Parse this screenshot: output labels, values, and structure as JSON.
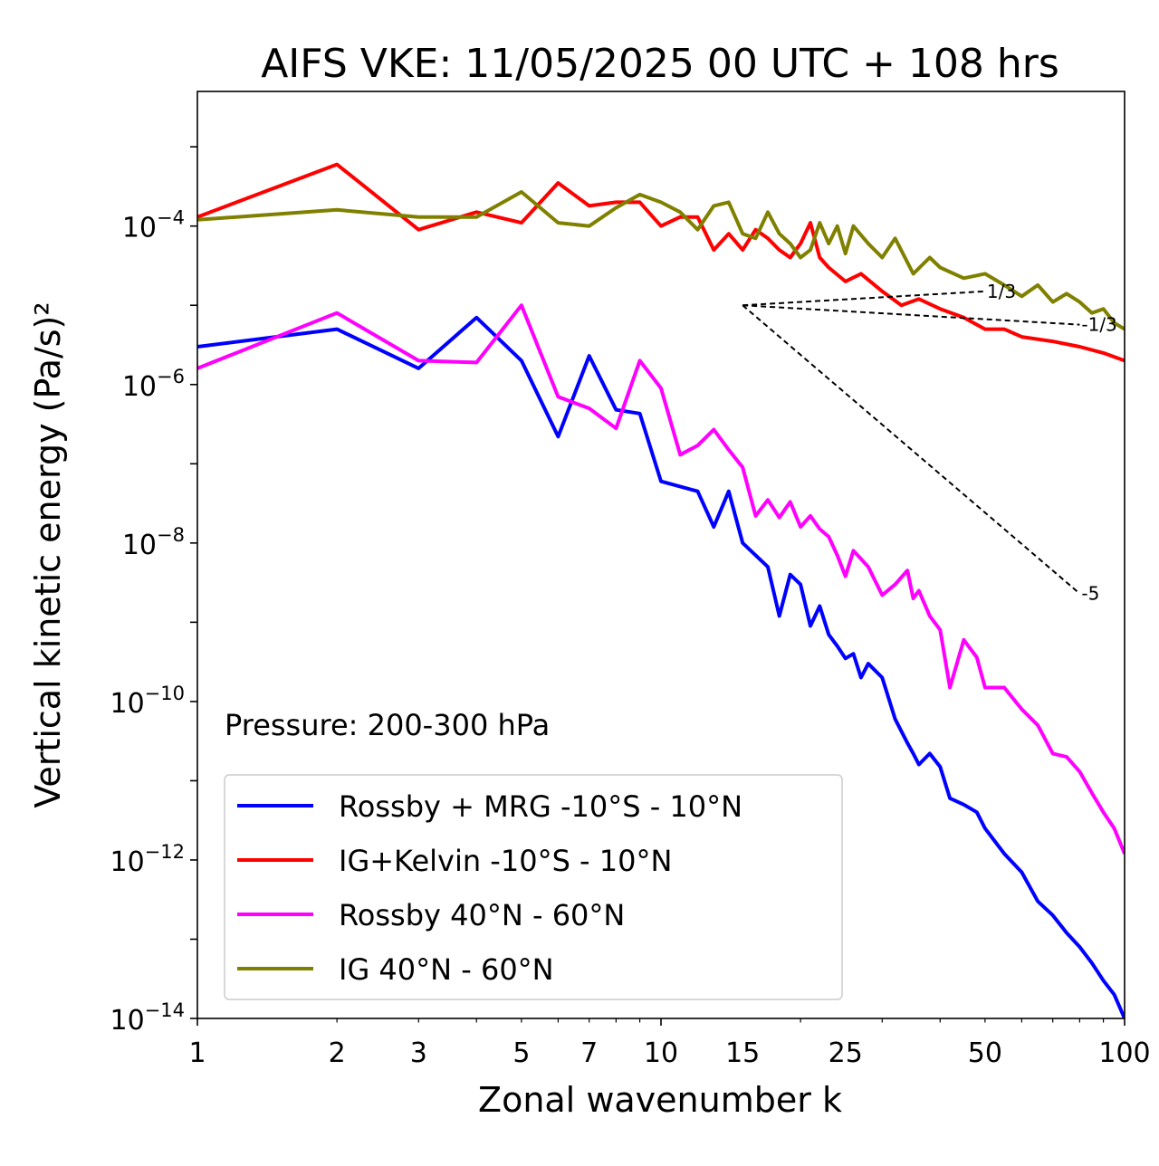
{
  "chart_data": {
    "type": "line",
    "title": "AIFS VKE: 11/05/2025 00 UTC + 108 hrs",
    "xlabel": "Zonal wavenumber k",
    "ylabel": "Vertical kinetic energy (Pa/s)²",
    "xscale": "log",
    "yscale": "log",
    "xlim": [
      1,
      100
    ],
    "ylim": [
      1e-14,
      0.005
    ],
    "x_ticks": [
      1,
      2,
      3,
      5,
      7,
      10,
      15,
      25,
      50,
      100
    ],
    "y_ticks": [
      {
        "value": 1e-14,
        "label": "10",
        "exp": "−14"
      },
      {
        "value": 1e-12,
        "label": "10",
        "exp": "−12"
      },
      {
        "value": 1e-10,
        "label": "10",
        "exp": "−10"
      },
      {
        "value": 1e-08,
        "label": "10",
        "exp": "−8"
      },
      {
        "value": 1e-06,
        "label": "10",
        "exp": "−6"
      },
      {
        "value": 0.0001,
        "label": "10",
        "exp": "−4"
      }
    ],
    "annotation": "Pressure: 200-300 hPa",
    "legend_position": "lower-left",
    "grid": false,
    "reference_lines": [
      {
        "label": "1/3",
        "slope": 0.333,
        "x": [
          15,
          50
        ],
        "y": [
          1e-05,
          1.5e-05
        ]
      },
      {
        "label": "-1/3",
        "slope": -0.333,
        "x": [
          15,
          80
        ],
        "y": [
          1e-05,
          5.7e-06
        ]
      },
      {
        "label": "-5",
        "slope": -5,
        "x": [
          15,
          80
        ],
        "y": [
          1e-05,
          2.3e-09
        ]
      }
    ],
    "series": [
      {
        "name": "Rossby + MRG -10°S - 10°N",
        "color": "#0000ff",
        "x": [
          1,
          2,
          3,
          4,
          5,
          6,
          7,
          8,
          9,
          10,
          12,
          13,
          14,
          15,
          17,
          18,
          19,
          20,
          21,
          22,
          23,
          24,
          25,
          26,
          27,
          28,
          30,
          32,
          34,
          35,
          36,
          38,
          40,
          42,
          45,
          48,
          50,
          55,
          60,
          65,
          70,
          75,
          80,
          85,
          90,
          95,
          100
        ],
        "y": [
          3e-06,
          5e-06,
          1.6e-06,
          7e-06,
          2e-06,
          2.2e-07,
          2.3e-06,
          4.8e-07,
          4.3e-07,
          6e-08,
          4.5e-08,
          1.6e-08,
          4.5e-08,
          1e-08,
          5e-09,
          1.2e-09,
          4e-09,
          3e-09,
          9e-10,
          1.6e-09,
          7e-10,
          5e-10,
          3.5e-10,
          4e-10,
          2e-10,
          3e-10,
          2e-10,
          6e-11,
          3e-11,
          2.2e-11,
          1.6e-11,
          2.2e-11,
          1.5e-11,
          6e-12,
          5e-12,
          4e-12,
          2.5e-12,
          1.2e-12,
          7e-13,
          3e-13,
          2e-13,
          1.2e-13,
          8e-14,
          5e-14,
          3e-14,
          2e-14,
          1e-14
        ]
      },
      {
        "name": "IG+Kelvin -10°S - 10°N",
        "color": "#ff0000",
        "x": [
          1,
          2,
          3,
          4,
          5,
          6,
          7,
          8,
          9,
          10,
          11,
          12,
          13,
          14,
          15,
          16,
          17,
          18,
          19,
          20,
          21,
          22,
          23,
          25,
          27,
          30,
          33,
          36,
          40,
          45,
          50,
          55,
          60,
          70,
          80,
          90,
          100
        ],
        "y": [
          0.00013,
          0.0006,
          9e-05,
          0.00015,
          0.00011,
          0.00035,
          0.00018,
          0.0002,
          0.0002,
          0.0001,
          0.00013,
          0.00013,
          5e-05,
          8e-05,
          5e-05,
          9e-05,
          7e-05,
          5e-05,
          4e-05,
          6e-05,
          0.00011,
          4e-05,
          3e-05,
          2e-05,
          2.5e-05,
          1.5e-05,
          1e-05,
          1.2e-05,
          9e-06,
          7e-06,
          5e-06,
          5e-06,
          4e-06,
          3.5e-06,
          3e-06,
          2.5e-06,
          2e-06
        ]
      },
      {
        "name": "Rossby 40°N - 60°N",
        "color": "#ff00ff",
        "x": [
          1,
          2,
          3,
          4,
          5,
          6,
          7,
          8,
          9,
          10,
          11,
          12,
          13,
          14,
          15,
          16,
          17,
          18,
          19,
          20,
          21,
          22,
          23,
          24,
          25,
          26,
          28,
          30,
          32,
          34,
          35,
          36,
          38,
          40,
          42,
          45,
          48,
          50,
          55,
          60,
          65,
          70,
          75,
          80,
          85,
          90,
          95,
          100
        ],
        "y": [
          1.6e-06,
          8e-06,
          2e-06,
          1.9e-06,
          1e-05,
          7e-07,
          5e-07,
          2.8e-07,
          2e-06,
          9e-07,
          1.3e-07,
          1.7e-07,
          2.7e-07,
          1.5e-07,
          9e-08,
          2.2e-08,
          3.5e-08,
          2.1e-08,
          3.3e-08,
          1.6e-08,
          2.2e-08,
          1.5e-08,
          1.2e-08,
          7e-09,
          3.8e-09,
          8e-09,
          5e-09,
          2.2e-09,
          3e-09,
          4.5e-09,
          2e-09,
          2.5e-09,
          1.2e-09,
          8e-10,
          1.5e-10,
          6e-10,
          3.6e-10,
          1.5e-10,
          1.5e-10,
          8e-11,
          5e-11,
          2.2e-11,
          2e-11,
          1.3e-11,
          7e-12,
          4e-12,
          2.5e-12,
          1.2e-12
        ]
      },
      {
        "name": "IG 40°N - 60°N",
        "color": "#808000",
        "x": [
          1,
          2,
          3,
          4,
          5,
          6,
          7,
          8,
          9,
          10,
          11,
          12,
          13,
          14,
          15,
          16,
          17,
          18,
          19,
          20,
          21,
          22,
          23,
          24,
          25,
          26,
          28,
          30,
          32,
          35,
          38,
          40,
          45,
          50,
          55,
          60,
          65,
          70,
          75,
          80,
          85,
          90,
          95,
          100
        ],
        "y": [
          0.00012,
          0.00016,
          0.00013,
          0.00013,
          0.00027,
          0.00011,
          0.0001,
          0.00017,
          0.00025,
          0.0002,
          0.00015,
          9e-05,
          0.00018,
          0.0002,
          8e-05,
          7e-05,
          0.00015,
          8e-05,
          6e-05,
          4e-05,
          5e-05,
          0.00011,
          6e-05,
          0.0001,
          4.5e-05,
          0.0001,
          6e-05,
          4e-05,
          7e-05,
          2.5e-05,
          4e-05,
          3e-05,
          2.2e-05,
          2.5e-05,
          1.8e-05,
          1.3e-05,
          1.8e-05,
          1.1e-05,
          1.4e-05,
          1.1e-05,
          8e-06,
          9e-06,
          6e-06,
          5e-06
        ]
      }
    ]
  }
}
